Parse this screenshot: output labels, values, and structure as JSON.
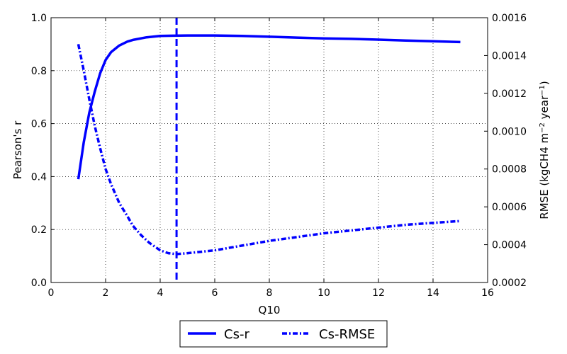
{
  "chart_data": {
    "type": "line",
    "xlabel": "Q10",
    "ylabel": "Pearson's r",
    "ylabel_right": {
      "prefix": "RMSE (kgCH4 m",
      "sup1": "−2",
      "middle": " year",
      "sup2": "−1",
      "suffix": ")"
    },
    "xlim": [
      0,
      16
    ],
    "ylim": [
      0.0,
      1.0
    ],
    "ylim_right": [
      0.0002,
      0.0016
    ],
    "x_ticks": [
      "0",
      "2",
      "4",
      "6",
      "8",
      "10",
      "12",
      "14",
      "16"
    ],
    "y_ticks": [
      "0.0",
      "0.2",
      "0.4",
      "0.6",
      "0.8",
      "1.0"
    ],
    "y_ticks_right": [
      "0.0002",
      "0.0004",
      "0.0006",
      "0.0008",
      "0.0010",
      "0.0012",
      "0.0014",
      "0.0016"
    ],
    "grid": true,
    "legend_position": "bottom-center",
    "vline_x": 4.6,
    "colors": {
      "series": "#0000ff"
    },
    "series": [
      {
        "name": "Cs-r",
        "axis": "left",
        "style": "solid",
        "x": [
          1.0,
          1.2,
          1.4,
          1.6,
          1.8,
          2.0,
          2.2,
          2.5,
          2.8,
          3.0,
          3.5,
          4.0,
          4.5,
          5.0,
          6.0,
          7.0,
          8.0,
          9.0,
          10.0,
          11.0,
          12.0,
          13.0,
          14.0,
          15.0
        ],
        "y": [
          0.39,
          0.53,
          0.64,
          0.72,
          0.79,
          0.84,
          0.87,
          0.895,
          0.91,
          0.916,
          0.926,
          0.931,
          0.932,
          0.933,
          0.933,
          0.931,
          0.928,
          0.925,
          0.922,
          0.92,
          0.917,
          0.914,
          0.911,
          0.908
        ]
      },
      {
        "name": "Cs-RMSE",
        "axis": "right",
        "style": "dashdot",
        "x": [
          1.0,
          1.2,
          1.4,
          1.6,
          1.8,
          2.0,
          2.2,
          2.5,
          2.8,
          3.0,
          3.3,
          3.6,
          4.0,
          4.3,
          4.6,
          5.0,
          6.0,
          7.0,
          8.0,
          9.0,
          10.0,
          11.0,
          12.0,
          13.0,
          14.0,
          15.0
        ],
        "y": [
          0.00146,
          0.00132,
          0.00117,
          0.00103,
          0.00091,
          0.0008,
          0.00072,
          0.00062,
          0.00055,
          0.0005,
          0.00045,
          0.00041,
          0.00037,
          0.000355,
          0.00035,
          0.000355,
          0.00037,
          0.000395,
          0.00042,
          0.00044,
          0.00046,
          0.000475,
          0.00049,
          0.000505,
          0.000515,
          0.000525
        ]
      }
    ]
  }
}
